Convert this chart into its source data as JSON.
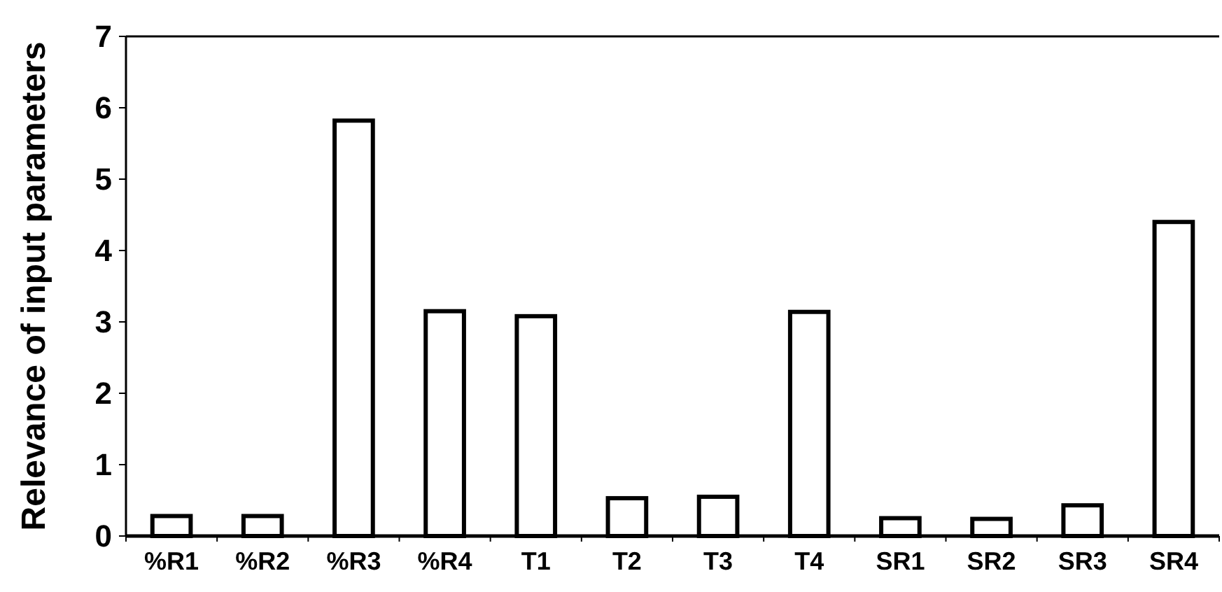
{
  "chart_data": {
    "type": "bar",
    "ylabel": "Relevance of input parameters",
    "categories": [
      "%R1",
      "%R2",
      "%R3",
      "%R4",
      "T1",
      "T2",
      "T3",
      "T4",
      "SR1",
      "SR2",
      "SR3",
      "SR4"
    ],
    "values": [
      0.28,
      0.28,
      5.82,
      3.15,
      3.08,
      0.53,
      0.55,
      3.14,
      0.25,
      0.24,
      0.43,
      4.4
    ],
    "color": "#ffffff",
    "ylim": [
      0,
      7
    ],
    "yticks": [
      0,
      1,
      2,
      3,
      4,
      5,
      6,
      7
    ],
    "grid": false
  }
}
